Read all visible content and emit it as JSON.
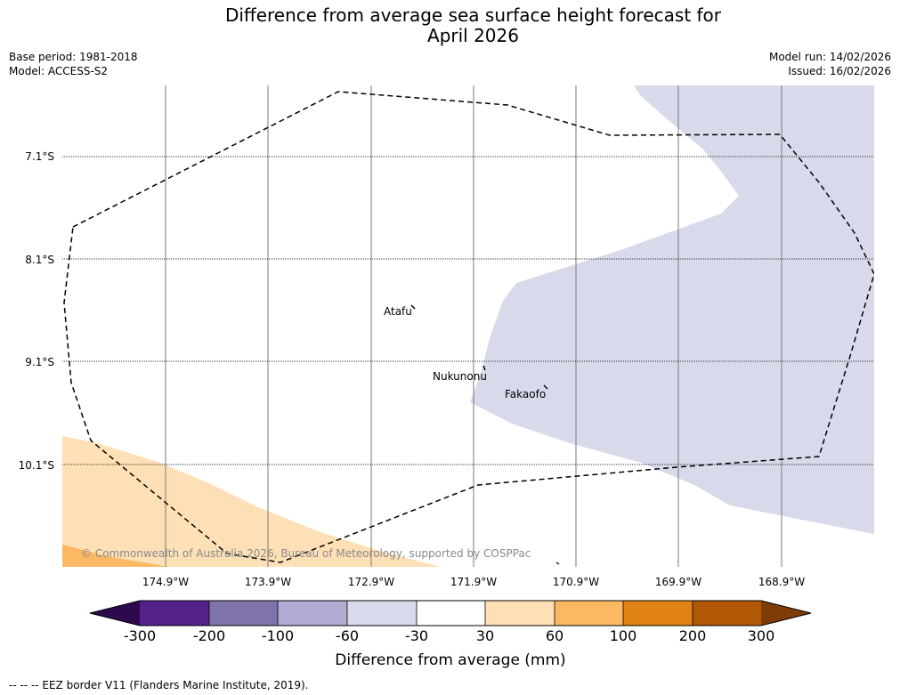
{
  "title_line1": "Difference from average sea surface height forecast for",
  "title_line2": "April 2026",
  "base_period": "Base period: 1981-2018",
  "model": "Model: ACCESS-S2",
  "model_run": "Model run: 14/02/2026",
  "issued": "Issued: 16/02/2026",
  "lat_labels": [
    "7.1°S",
    "8.1°S",
    "9.1°S",
    "10.1°S"
  ],
  "lon_labels": [
    "174.9°W",
    "173.9°W",
    "172.9°W",
    "171.9°W",
    "170.9°W",
    "169.9°W",
    "168.9°W"
  ],
  "places": {
    "atafu": "Atafu",
    "nukunonu": "Nukunonu",
    "fakaofo": "Fakaofo"
  },
  "credit": "© Commonwealth of Australia 2026, Bureau of Meteorology, supported by COSPPac",
  "colorbar": {
    "title": "Difference from average (mm)",
    "ticks": [
      "-300",
      "-200",
      "-100",
      "-60",
      "-30",
      "30",
      "60",
      "100",
      "200",
      "300"
    ],
    "colors": {
      "under": "#2d0a4e",
      "c1": "#542189",
      "c2": "#8073ac",
      "c3": "#b2abd2",
      "c4": "#d8daeb",
      "c5": "#ffffff",
      "c6": "#fee0b6",
      "c7": "#fdb863",
      "c8": "#e08214",
      "c9": "#b35806",
      "over": "#7f3b08"
    }
  },
  "legend_note": "-- -- -- EEZ border V11 (Flanders Marine Institute, 2019)."
}
